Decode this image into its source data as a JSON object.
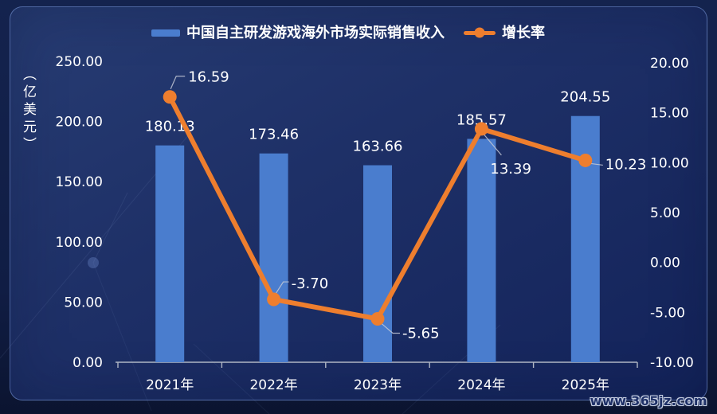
{
  "watermark": {
    "text": "www.365jz.com"
  },
  "colors": {
    "bar": "#4a7dce",
    "line": "#ee7e2e",
    "text": "#ffffff",
    "axis": "#b0b6c4",
    "leader": "#c4c9d6"
  },
  "chart_data": {
    "type": "bar",
    "combo": "bar+line",
    "categories": [
      "2021年",
      "2022年",
      "2023年",
      "2024年",
      "2025年"
    ],
    "series": [
      {
        "name": "中国自主研发游戏海外市场实际销售收入",
        "type": "bar",
        "axis": "left",
        "values": [
          180.13,
          173.46,
          163.66,
          185.57,
          204.55
        ],
        "labels": [
          "180.13",
          "173.46",
          "163.66",
          "185.57",
          "204.55"
        ]
      },
      {
        "name": "增长率",
        "type": "line",
        "axis": "right",
        "values": [
          16.59,
          -3.7,
          -5.65,
          13.39,
          10.23
        ],
        "labels": [
          "16.59",
          "-3.70",
          "-5.65",
          "13.39",
          "10.23"
        ]
      }
    ],
    "left_axis": {
      "title": "（亿美元）",
      "min": 0,
      "max": 250,
      "step": 50,
      "tick_labels": [
        "250.00",
        "200.00",
        "150.00",
        "100.00",
        "50.00",
        "0.00"
      ]
    },
    "right_axis": {
      "min": -10,
      "max": 20,
      "step": 5,
      "tick_labels": [
        "20.00",
        "15.00",
        "10.00",
        "5.00",
        "0.00",
        "-5.00",
        "-10.00"
      ]
    },
    "grid": false,
    "legend_position": "top"
  }
}
